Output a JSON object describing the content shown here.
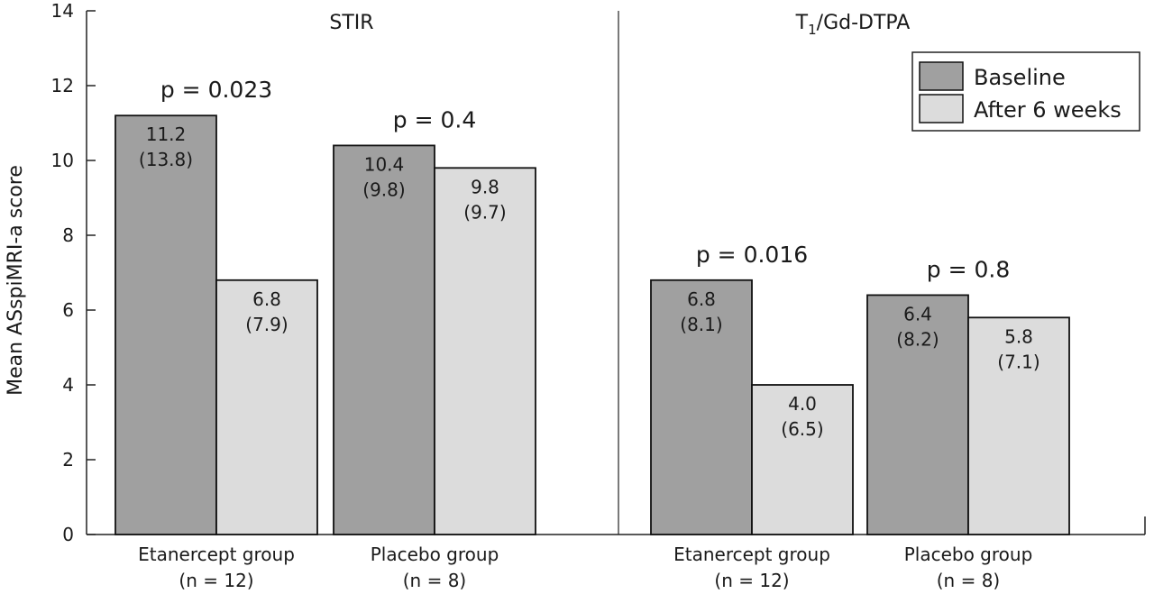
{
  "chart_data": {
    "type": "bar",
    "ylabel": "Mean ASspiMRI-a score",
    "ylim": [
      0,
      14
    ],
    "yticks": [
      0,
      2,
      4,
      6,
      8,
      10,
      12,
      14
    ],
    "grid": false,
    "legend_position": "top-right",
    "legend": [
      {
        "name": "Baseline",
        "color": "#a0a0a0"
      },
      {
        "name": "After 6 weeks",
        "color": "#dcdcdc"
      }
    ],
    "panels": [
      {
        "title": "STIR",
        "groups": [
          {
            "label": "Etanercept group",
            "n_label": "(n = 12)",
            "p_value": "p = 0.023",
            "bars": [
              {
                "series": "Baseline",
                "value": 11.2,
                "label": "11.2",
                "sublabel": "(13.8)"
              },
              {
                "series": "After 6 weeks",
                "value": 6.8,
                "label": "6.8",
                "sublabel": "(7.9)"
              }
            ]
          },
          {
            "label": "Placebo group",
            "n_label": "(n = 8)",
            "p_value": "p = 0.4",
            "bars": [
              {
                "series": "Baseline",
                "value": 10.4,
                "label": "10.4",
                "sublabel": "(9.8)"
              },
              {
                "series": "After 6 weeks",
                "value": 9.8,
                "label": "9.8",
                "sublabel": "(9.7)"
              }
            ]
          }
        ]
      },
      {
        "title": "T",
        "title_sub": "1",
        "title_rest": "/Gd-DTPA",
        "groups": [
          {
            "label": "Etanercept group",
            "n_label": "(n = 12)",
            "p_value": "p = 0.016",
            "bars": [
              {
                "series": "Baseline",
                "value": 6.8,
                "label": "6.8",
                "sublabel": "(8.1)"
              },
              {
                "series": "After 6 weeks",
                "value": 4.0,
                "label": "4.0",
                "sublabel": "(6.5)"
              }
            ]
          },
          {
            "label": "Placebo group",
            "n_label": "(n = 8)",
            "p_value": "p = 0.8",
            "bars": [
              {
                "series": "Baseline",
                "value": 6.4,
                "label": "6.4",
                "sublabel": "(8.2)"
              },
              {
                "series": "After 6 weeks",
                "value": 5.8,
                "label": "5.8",
                "sublabel": "(7.1)"
              }
            ]
          }
        ]
      }
    ]
  }
}
